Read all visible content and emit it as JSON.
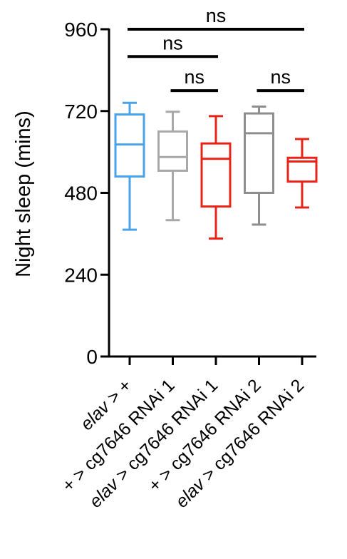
{
  "chart_data": {
    "type": "box",
    "title": "",
    "ylabel": "Night sleep (mins)",
    "xlabel": "",
    "ylim": [
      0,
      960
    ],
    "yticks": [
      0,
      240,
      480,
      720,
      960
    ],
    "grid": false,
    "categories": [
      {
        "genotype": "elav",
        "rest": " > +"
      },
      {
        "genotype": "+",
        "rest": " > cg7646 RNAi 1"
      },
      {
        "genotype": "elav",
        "rest": " > cg7646 RNAi 1"
      },
      {
        "genotype": "+",
        "rest": " > cg7646 RNAi 2"
      },
      {
        "genotype": "elav",
        "rest": " > cg7646 RNAi 2"
      }
    ],
    "boxes": [
      {
        "min": 372,
        "q1": 528,
        "median": 622,
        "q3": 710,
        "max": 744,
        "color": "#4aa3e8"
      },
      {
        "min": 400,
        "q1": 545,
        "median": 585,
        "q3": 660,
        "max": 718,
        "color": "#a8a8a8"
      },
      {
        "min": 346,
        "q1": 440,
        "median": 580,
        "q3": 625,
        "max": 705,
        "color": "#e82418"
      },
      {
        "min": 387,
        "q1": 480,
        "median": 655,
        "q3": 713,
        "max": 733,
        "color": "#8e8e8e"
      },
      {
        "min": 437,
        "q1": 513,
        "median": 572,
        "q3": 583,
        "max": 638,
        "color": "#e82418"
      }
    ],
    "comparisons": [
      {
        "from": 0,
        "to": 4,
        "label": "ns",
        "y": 960
      },
      {
        "from": 0,
        "to": 2,
        "label": "ns",
        "y": 880
      },
      {
        "from": 1,
        "to": 2,
        "label": "ns",
        "y": 780
      },
      {
        "from": 3,
        "to": 4,
        "label": "ns",
        "y": 780
      }
    ]
  }
}
